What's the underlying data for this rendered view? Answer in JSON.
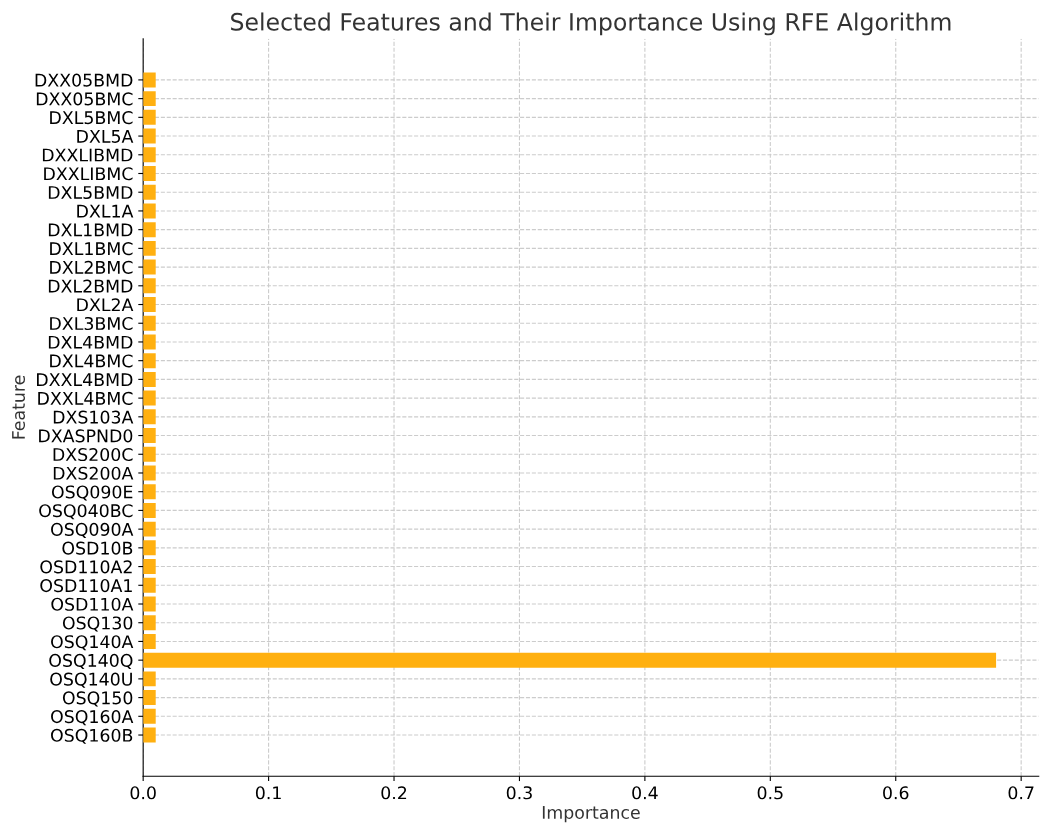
{
  "chart_data": {
    "type": "bar",
    "orientation": "horizontal",
    "title": "Selected Features and Their Importance Using RFE Algorithm",
    "xlabel": "Importance",
    "ylabel": "Feature",
    "categories": [
      "DXX05BMD",
      "DXX05BMC",
      "DXL5BMC",
      "DXL5A",
      "DXXLIBMD",
      "DXXLIBMC",
      "DXL5BMD",
      "DXL1A",
      "DXL1BMD",
      "DXL1BMC",
      "DXL2BMC",
      "DXL2BMD",
      "DXL2A",
      "DXL3BMC",
      "DXL4BMD",
      "DXL4BMC",
      "DXXL4BMD",
      "DXXL4BMC",
      "DXS103A",
      "DXASPND0",
      "DXS200C",
      "DXS200A",
      "OSQ090E",
      "OSQ040BC",
      "OSQ090A",
      "OSD10B",
      "OSD110A2",
      "OSD110A1",
      "OSD110A",
      "OSQ130",
      "OSQ140A",
      "OSQ140Q",
      "OSQ140U",
      "OSQ150",
      "OSQ160A",
      "OSQ160B"
    ],
    "values": [
      0.01,
      0.01,
      0.01,
      0.01,
      0.01,
      0.01,
      0.01,
      0.01,
      0.01,
      0.01,
      0.01,
      0.01,
      0.01,
      0.01,
      0.01,
      0.01,
      0.01,
      0.01,
      0.01,
      0.01,
      0.01,
      0.01,
      0.01,
      0.01,
      0.01,
      0.01,
      0.01,
      0.01,
      0.01,
      0.01,
      0.01,
      0.68,
      0.01,
      0.01,
      0.01,
      0.01
    ],
    "color": "#ffb010",
    "xlim": [
      0,
      0.714
    ],
    "xticks": [
      {
        "value": 0,
        "label": "0.0"
      },
      0.1,
      0.2,
      0.3,
      0.4,
      0.5,
      0.6,
      0.7
    ],
    "grid": true
  }
}
